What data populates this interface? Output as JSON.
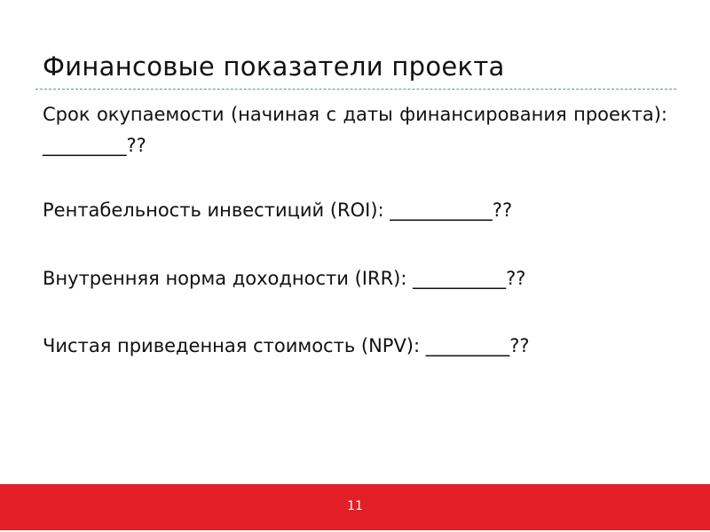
{
  "slide": {
    "title": "Финансовые показатели проекта",
    "items": [
      "Срок окупаемости (начиная с даты финансирования проекта): _________??",
      "Рентабельность инвестиций (ROI): ___________??",
      "Внутренняя норма доходности (IRR): __________??",
      "Чистая приведенная стоимость (NPV): _________??"
    ],
    "page_number": "11"
  },
  "colors": {
    "footer": "#e21e26",
    "rule": "#5a9a8a"
  }
}
